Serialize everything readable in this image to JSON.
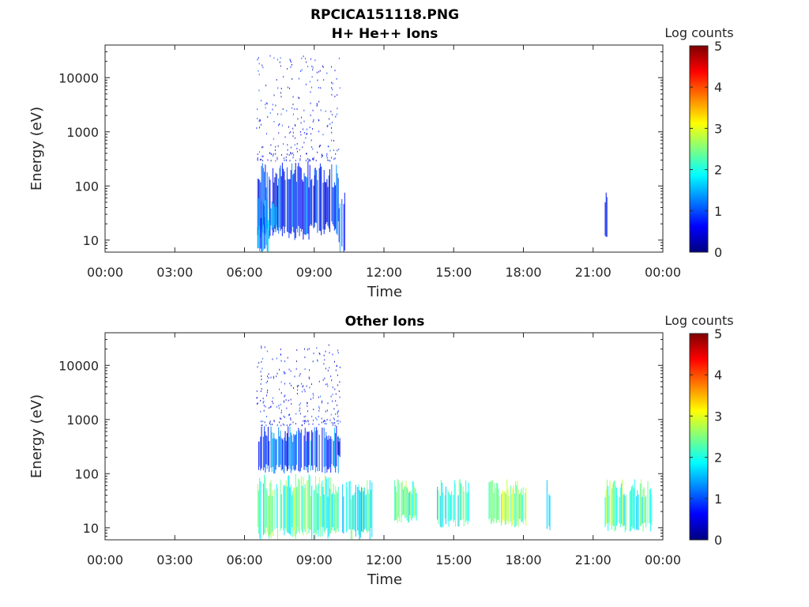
{
  "figure_title": "RPCICA151118.PNG",
  "colormap": [
    "#00007f",
    "#0000ff",
    "#007fff",
    "#00ffff",
    "#7fff7f",
    "#ffff00",
    "#ff7f00",
    "#ff0000",
    "#7f0000"
  ],
  "chart_data": [
    {
      "type": "heatmap",
      "title": "H+ He++ Ions",
      "xlabel": "Time",
      "ylabel": "Energy (eV)",
      "x_ticks": [
        "00:00",
        "03:00",
        "06:00",
        "09:00",
        "12:00",
        "15:00",
        "18:00",
        "21:00",
        "00:00"
      ],
      "x_range_hours": [
        0,
        24
      ],
      "y_scale": "log",
      "y_range": [
        6,
        40000
      ],
      "y_ticks": [
        {
          "value": 10,
          "label": "10"
        },
        {
          "value": 100,
          "label": "100"
        },
        {
          "value": 1000,
          "label": "1000"
        },
        {
          "value": 10000,
          "label": "10000"
        }
      ],
      "colorbar": {
        "label": "Log counts",
        "min": 0,
        "max": 5,
        "ticks": [
          "0",
          "1",
          "2",
          "3",
          "4",
          "5"
        ]
      },
      "regions": [
        {
          "start": 6.55,
          "end": 9.0,
          "emin": 10,
          "emax": 300,
          "level": 0.8
        },
        {
          "start": 9.0,
          "end": 10.05,
          "emin": 12,
          "emax": 280,
          "level": 0.7
        },
        {
          "start": 6.55,
          "end": 7.4,
          "emin": 15,
          "emax": 60,
          "level": 1.6
        },
        {
          "start": 6.55,
          "end": 7.0,
          "emin": 6,
          "emax": 30,
          "level": 1.2
        },
        {
          "start": 10.05,
          "end": 10.3,
          "emin": 6,
          "emax": 80,
          "level": 0.9
        },
        {
          "start": 21.5,
          "end": 21.6,
          "emin": 8,
          "emax": 80,
          "level": 0.6
        }
      ],
      "scatter": {
        "start": 6.5,
        "end": 10.1,
        "emin": 300,
        "emax": 30000,
        "level": 0.6
      }
    },
    {
      "type": "heatmap",
      "title": "Other Ions",
      "xlabel": "Time",
      "ylabel": "Energy (eV)",
      "x_ticks": [
        "00:00",
        "03:00",
        "06:00",
        "09:00",
        "12:00",
        "15:00",
        "18:00",
        "21:00",
        "00:00"
      ],
      "x_range_hours": [
        0,
        24
      ],
      "y_scale": "log",
      "y_range": [
        6,
        40000
      ],
      "y_ticks": [
        {
          "value": 10,
          "label": "10"
        },
        {
          "value": 100,
          "label": "100"
        },
        {
          "value": 1000,
          "label": "1000"
        },
        {
          "value": 10000,
          "label": "10000"
        }
      ],
      "colorbar": {
        "label": "Log counts",
        "min": 0,
        "max": 5,
        "ticks": [
          "0",
          "1",
          "2",
          "3",
          "4",
          "5"
        ]
      },
      "regions": [
        {
          "start": 6.55,
          "end": 10.05,
          "emin": 100,
          "emax": 800,
          "level": 1.0
        },
        {
          "start": 6.55,
          "end": 10.05,
          "emin": 6,
          "emax": 100,
          "level": 2.3
        },
        {
          "start": 10.0,
          "end": 10.2,
          "emin": 200,
          "emax": 500,
          "level": 0.3
        },
        {
          "start": 10.2,
          "end": 11.5,
          "emin": 6,
          "emax": 80,
          "level": 2.0
        },
        {
          "start": 12.4,
          "end": 13.4,
          "emin": 12,
          "emax": 80,
          "level": 2.3
        },
        {
          "start": 14.2,
          "end": 15.65,
          "emin": 10,
          "emax": 80,
          "level": 2.0
        },
        {
          "start": 16.5,
          "end": 18.1,
          "emin": 10,
          "emax": 80,
          "level": 2.4
        },
        {
          "start": 19.0,
          "end": 19.15,
          "emin": 8,
          "emax": 80,
          "level": 1.8
        },
        {
          "start": 21.5,
          "end": 23.5,
          "emin": 8,
          "emax": 80,
          "level": 2.2
        }
      ],
      "scatter": {
        "start": 6.5,
        "end": 10.1,
        "emin": 800,
        "emax": 25000,
        "level": 0.6
      }
    }
  ]
}
